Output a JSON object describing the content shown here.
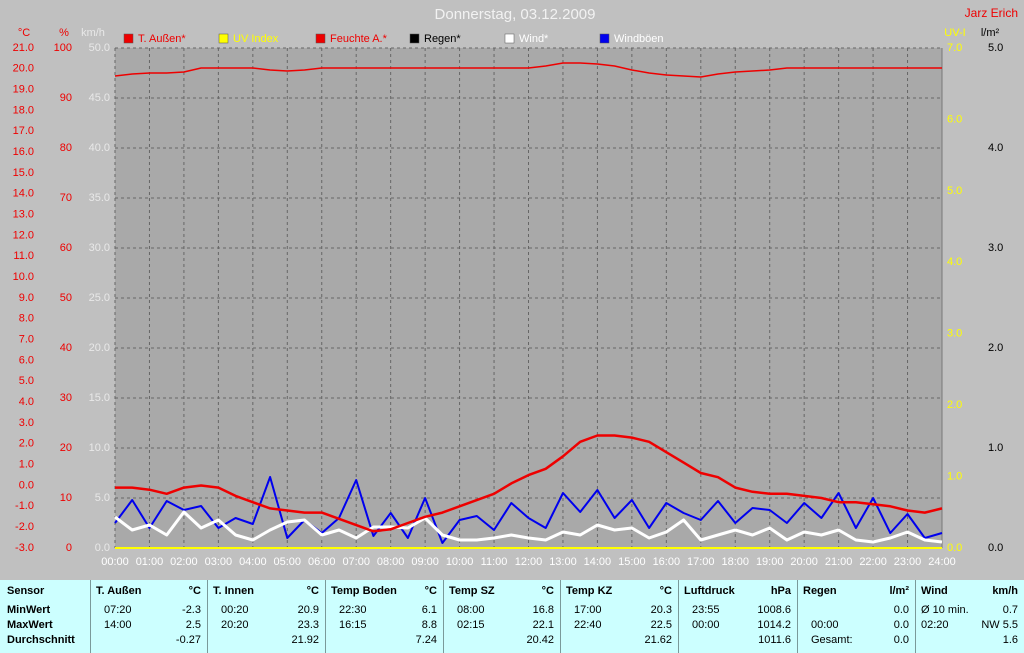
{
  "chart_data": {
    "type": "line",
    "title": "Donnerstag, 03.12.2009",
    "author": "Jarz Erich",
    "categories": [
      "00:00",
      null,
      "01:00",
      null,
      "02:00",
      null,
      "03:00",
      null,
      "04:00",
      null,
      "05:00",
      null,
      "06:00",
      null,
      "07:00",
      null,
      "08:00",
      null,
      "09:00",
      null,
      "10:00",
      null,
      "11:00",
      null,
      "12:00",
      null,
      "13:00",
      null,
      "14:00",
      null,
      "15:00",
      null,
      "16:00",
      null,
      "17:00",
      null,
      "18:00",
      null,
      "19:00",
      null,
      "20:00",
      null,
      "21:00",
      null,
      "22:00",
      null,
      "23:00",
      null,
      "24:00"
    ],
    "axes": [
      {
        "title": "°C",
        "color": "#ee0000",
        "lim": [
          -3,
          21
        ],
        "ticks": [
          {
            "value": 21,
            "label": "21.0"
          },
          {
            "value": 20,
            "label": "20.0"
          },
          {
            "value": 19,
            "label": "19.0"
          },
          {
            "value": 18,
            "label": "18.0"
          },
          {
            "value": 17,
            "label": "17.0"
          },
          {
            "value": 16,
            "label": "16.0"
          },
          {
            "value": 15,
            "label": "15.0"
          },
          {
            "value": 14,
            "label": "14.0"
          },
          {
            "value": 13,
            "label": "13.0"
          },
          {
            "value": 12,
            "label": "12.0"
          },
          {
            "value": 11,
            "label": "11.0"
          },
          {
            "value": 10,
            "label": "10.0"
          },
          {
            "value": 9,
            "label": "9.0"
          },
          {
            "value": 8,
            "label": "8.0"
          },
          {
            "value": 7,
            "label": "7.0"
          },
          {
            "value": 6,
            "label": "6.0"
          },
          {
            "value": 5,
            "label": "5.0"
          },
          {
            "value": 4,
            "label": "4.0"
          },
          {
            "value": 3,
            "label": "3.0"
          },
          {
            "value": 2,
            "label": "2.0"
          },
          {
            "value": 1,
            "label": "1.0"
          },
          {
            "value": 0,
            "label": "0.0"
          },
          {
            "value": -1,
            "label": "-1.0"
          },
          {
            "value": -2,
            "label": "-2.0"
          },
          {
            "value": -3,
            "label": "-3.0"
          }
        ]
      },
      {
        "title": "%",
        "color": "#ee0000",
        "lim": [
          0,
          100
        ],
        "ticks": [
          100,
          90,
          80,
          70,
          60,
          50,
          40,
          30,
          20,
          10,
          0
        ]
      },
      {
        "title": "km/h",
        "color": "#e8e8e8",
        "lim": [
          0,
          50
        ],
        "grid": true,
        "ticks": [
          {
            "value": 50,
            "label": "50.0"
          },
          {
            "value": 45,
            "label": "45.0"
          },
          {
            "value": 40,
            "label": "40.0"
          },
          {
            "value": 35,
            "label": "35.0"
          },
          {
            "value": 30,
            "label": "30.0"
          },
          {
            "value": 25,
            "label": "25.0"
          },
          {
            "value": 20,
            "label": "20.0"
          },
          {
            "value": 15,
            "label": "15.0"
          },
          {
            "value": 10,
            "label": "10.0"
          },
          {
            "value": 5,
            "label": "5.0"
          },
          {
            "value": 0,
            "label": "0.0"
          }
        ]
      },
      {
        "title": "UV-I",
        "color": "#ffff00",
        "lim": [
          0,
          7
        ],
        "ticks": [
          {
            "value": 7,
            "label": "7.0"
          },
          {
            "value": 6,
            "label": "6.0"
          },
          {
            "value": 5,
            "label": "5.0"
          },
          {
            "value": 4,
            "label": "4.0"
          },
          {
            "value": 3,
            "label": "3.0"
          },
          {
            "value": 2,
            "label": "2.0"
          },
          {
            "value": 1,
            "label": "1.0"
          },
          {
            "value": 0,
            "label": "0.0"
          }
        ]
      },
      {
        "title": "l/m²",
        "color": "#000000",
        "lim": [
          0,
          5
        ],
        "ticks": [
          {
            "value": 5,
            "label": "5.0"
          },
          {
            "value": 4,
            "label": "4.0"
          },
          {
            "value": 3,
            "label": "3.0"
          },
          {
            "value": 2,
            "label": "2.0"
          },
          {
            "value": 1,
            "label": "1.0"
          },
          {
            "value": 0,
            "label": "0.0"
          }
        ]
      }
    ],
    "series": [
      {
        "name": "T. Außen*",
        "color": "#ee0000",
        "label_color": "#ee0000",
        "axis": 0,
        "values": [
          -0.1,
          -0.1,
          -0.2,
          -0.4,
          -0.1,
          0.0,
          -0.1,
          -0.5,
          -0.8,
          -1.1,
          -1.2,
          -1.3,
          -1.3,
          -1.6,
          -1.9,
          -2.2,
          -2.1,
          -1.8,
          -1.5,
          -1.3,
          -1.0,
          -0.7,
          -0.4,
          0.1,
          0.5,
          0.8,
          1.4,
          2.1,
          2.4,
          2.4,
          2.3,
          2.1,
          1.6,
          1.1,
          0.6,
          0.4,
          -0.1,
          -0.3,
          -0.4,
          -0.4,
          -0.5,
          -0.6,
          -0.8,
          -0.8,
          -0.9,
          -1.0,
          -1.2,
          -1.3,
          -1.1
        ]
      },
      {
        "name": "UV Index",
        "color": "#ffff00",
        "label_color": "#ffff00",
        "axis": 3,
        "values": [
          0,
          0,
          0,
          0,
          0,
          0,
          0,
          0,
          0,
          0,
          0,
          0,
          0,
          0,
          0,
          0,
          0,
          0,
          0,
          0,
          0,
          0,
          0,
          0,
          0,
          0,
          0,
          0,
          0,
          0,
          0,
          0,
          0,
          0,
          0,
          0,
          0,
          0,
          0,
          0,
          0,
          0,
          0,
          0,
          0,
          0,
          0,
          0,
          0
        ]
      },
      {
        "name": "Feuchte A.*",
        "color": "#ee0000",
        "label_color": "#ee0000",
        "axis": 1,
        "values": [
          94.4,
          94.8,
          95,
          95,
          95.2,
          96,
          96,
          96,
          96,
          95.6,
          95.4,
          95.6,
          96,
          96,
          96,
          96,
          96,
          96,
          96,
          96,
          96,
          96,
          96,
          96,
          96,
          96.4,
          97,
          97,
          96.8,
          96.4,
          95.6,
          95,
          94.6,
          94.4,
          94.2,
          94.8,
          95.2,
          95.4,
          95.6,
          96,
          96,
          96,
          96,
          96,
          96,
          96,
          96,
          96,
          96
        ]
      },
      {
        "name": "Regen*",
        "color": "#000000",
        "label_color": "#000000",
        "axis": 4,
        "values": [
          0,
          0,
          0,
          0,
          0,
          0,
          0,
          0,
          0,
          0,
          0,
          0,
          0,
          0,
          0,
          0,
          0,
          0,
          0,
          0,
          0,
          0,
          0,
          0,
          0,
          0,
          0,
          0,
          0,
          0,
          0,
          0,
          0,
          0,
          0,
          0,
          0,
          0,
          0,
          0,
          0,
          0,
          0,
          0,
          0,
          0,
          0,
          0,
          0
        ]
      },
      {
        "name": "Wind*",
        "color": "#ffffff",
        "label_color": "#ffffff",
        "axis": 2,
        "values": [
          3.1,
          1.8,
          2.3,
          1.3,
          3.6,
          2.0,
          2.8,
          1.3,
          0.8,
          1.8,
          2.6,
          2.8,
          1.3,
          1.8,
          1.0,
          2.1,
          2.1,
          2.0,
          3.0,
          1.3,
          0.8,
          0.8,
          1.0,
          1.3,
          1.0,
          0.8,
          1.6,
          1.3,
          2.3,
          1.8,
          2.0,
          1.0,
          1.6,
          2.8,
          0.8,
          1.3,
          1.8,
          1.3,
          2.0,
          0.8,
          1.6,
          1.3,
          1.8,
          0.8,
          0.6,
          1.0,
          1.6,
          0.8,
          0.6
        ]
      },
      {
        "name": "Windböen",
        "color": "#0000ee",
        "label_color": "#ffffff",
        "axis": 2,
        "values": [
          2.5,
          4.8,
          2.0,
          4.7,
          3.8,
          4.2,
          2.0,
          3.0,
          2.4,
          7.1,
          1.0,
          2.8,
          1.5,
          3.0,
          6.8,
          1.2,
          3.5,
          1.0,
          5.0,
          0.5,
          2.8,
          3.2,
          1.8,
          4.5,
          3.0,
          2.0,
          5.5,
          3.6,
          5.8,
          3.0,
          4.8,
          2.0,
          4.5,
          3.5,
          2.8,
          4.7,
          2.5,
          4.0,
          3.8,
          2.5,
          4.5,
          3.0,
          5.5,
          2.0,
          5.0,
          1.5,
          3.4,
          1.0,
          1.5
        ]
      }
    ]
  },
  "table": {
    "header": [
      "Sensor",
      "T. Außen",
      "°C",
      "T. Innen",
      "°C",
      "Temp Boden",
      "°C",
      "Temp SZ",
      "°C",
      "Temp KZ",
      "°C",
      "Luftdruck",
      "hPa",
      "Regen",
      "l/m²",
      "Wind",
      "km/h"
    ],
    "rows": [
      [
        "MinWert",
        "07:20",
        "-2.3",
        "00:20",
        "20.9",
        "22:30",
        "6.1",
        "08:00",
        "16.8",
        "17:00",
        "20.3",
        "23:55",
        "1008.6",
        null,
        "0.0",
        "Ø 10 min.",
        "0.7"
      ],
      [
        "MaxWert",
        "14:00",
        "2.5",
        "20:20",
        "23.3",
        "16:15",
        "8.8",
        "02:15",
        "22.1",
        "22:40",
        "22.5",
        "00:00",
        "1014.2",
        "00:00",
        "0.0",
        "02:20",
        "NW 5.5"
      ],
      [
        "Durchschnitt",
        null,
        "-0.27",
        null,
        "21.92",
        null,
        "7.24",
        null,
        "20.42",
        null,
        "21.62",
        null,
        "1011.6",
        "Gesamt:",
        "0.0",
        null,
        "1.6"
      ]
    ]
  }
}
